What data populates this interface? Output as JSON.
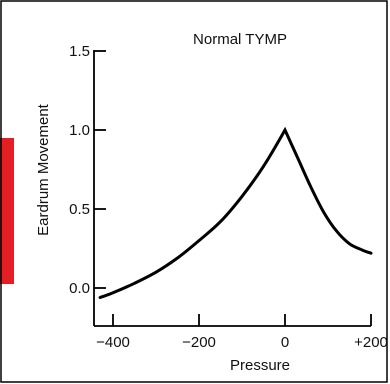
{
  "accent_color": "#e31e24",
  "chart_data": {
    "type": "line",
    "title": "Normal TYMP",
    "xlabel": "Pressure",
    "ylabel": "Eardrum Movement",
    "xlim": [
      -450,
      210
    ],
    "ylim": [
      -0.15,
      1.5
    ],
    "x_ticks": [
      -400,
      -200,
      0,
      200
    ],
    "x_tick_labels": [
      "−400",
      "−200",
      "0",
      "+200"
    ],
    "y_ticks": [
      0.0,
      0.5,
      1.0,
      1.5
    ],
    "y_tick_labels": [
      "0.0",
      "0.5",
      "1.0",
      "1.5"
    ],
    "grid": false,
    "legend": "none",
    "line_color": "#000000",
    "series": [
      {
        "name": "",
        "x": [
          -430,
          -400,
          -350,
          -300,
          -250,
          -200,
          -150,
          -100,
          -50,
          0,
          30,
          60,
          90,
          120,
          150,
          180,
          200
        ],
        "y": [
          -0.06,
          -0.03,
          0.03,
          0.1,
          0.19,
          0.3,
          0.42,
          0.58,
          0.77,
          1.0,
          0.82,
          0.64,
          0.48,
          0.36,
          0.28,
          0.24,
          0.22
        ]
      }
    ]
  }
}
